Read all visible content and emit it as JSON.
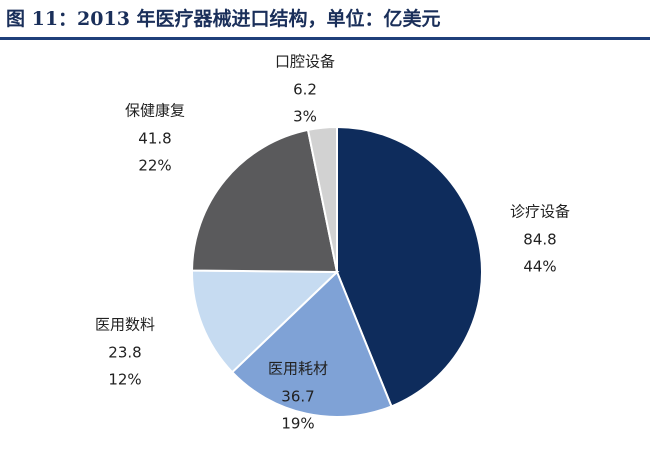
{
  "chart_data": {
    "type": "pie",
    "title": "图 11：2013 年医疗器械进口结构，单位：亿美元",
    "categories": [
      "诊疗设备",
      "医用耗材",
      "医用数料",
      "保健康复",
      "口腔设备"
    ],
    "values": [
      84.8,
      36.7,
      23.8,
      41.8,
      6.2
    ],
    "share_labels": [
      "44%",
      "19%",
      "12%",
      "22%",
      "3%"
    ],
    "colors": [
      "#0e2c5c",
      "#7fa2d6",
      "#c6dbf1",
      "#5a5a5c",
      "#d2d2d2"
    ]
  }
}
